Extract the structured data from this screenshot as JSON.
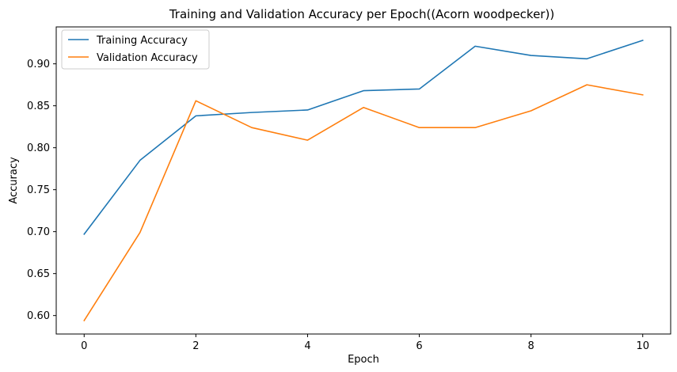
{
  "chart_data": {
    "type": "line",
    "title": "Training and Validation Accuracy per Epoch((Acorn woodpecker))",
    "xlabel": "Epoch",
    "ylabel": "Accuracy",
    "x": [
      0,
      1,
      2,
      3,
      4,
      5,
      6,
      7,
      8,
      9,
      10
    ],
    "xlim": [
      -0.5,
      10.5
    ],
    "ylim": [
      0.578,
      0.944
    ],
    "xticks": [
      0,
      2,
      4,
      6,
      8,
      10
    ],
    "yticks": [
      0.6,
      0.65,
      0.7,
      0.75,
      0.8,
      0.85,
      0.9
    ],
    "ytick_labels": [
      "0.60",
      "0.65",
      "0.70",
      "0.75",
      "0.80",
      "0.85",
      "0.90"
    ],
    "xtick_labels": [
      "0",
      "2",
      "4",
      "6",
      "8",
      "10"
    ],
    "grid": false,
    "legend_position": "top-left",
    "series": [
      {
        "name": "Training Accuracy",
        "color": "#1f77b4",
        "values": [
          0.697,
          0.785,
          0.838,
          0.842,
          0.845,
          0.868,
          0.87,
          0.921,
          0.91,
          0.906,
          0.928
        ]
      },
      {
        "name": "Validation Accuracy",
        "color": "#ff7f0e",
        "values": [
          0.594,
          0.699,
          0.856,
          0.824,
          0.809,
          0.848,
          0.824,
          0.824,
          0.844,
          0.875,
          0.863
        ]
      }
    ]
  }
}
